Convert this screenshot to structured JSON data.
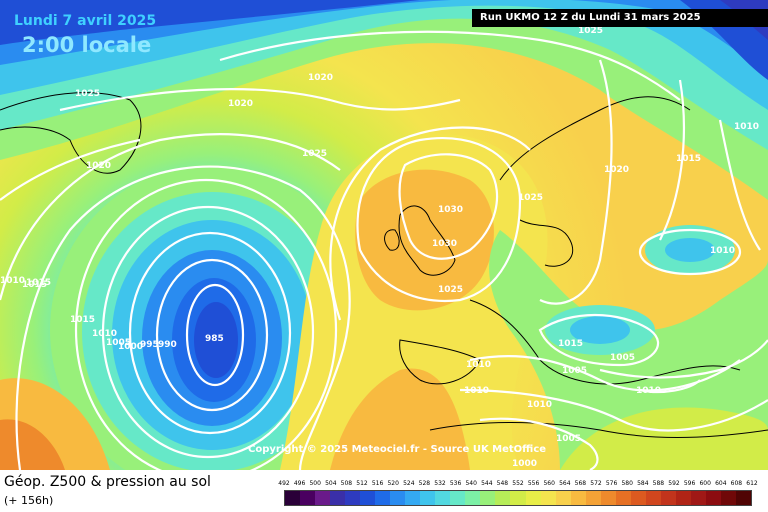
{
  "header": {
    "date": "Lundi 7 avril 2025",
    "time": "2:00 locale",
    "run": "Run UKMO 12 Z du Lundi 31 mars 2025"
  },
  "map": {
    "copyright": "Copyright © 2025 Meteociel.fr - Source UK MetOffice",
    "isobar_labels": [
      "1025",
      "1020",
      "1020",
      "1025",
      "1020",
      "1025",
      "1030",
      "1030",
      "1025",
      "1020",
      "1015",
      "1010",
      "1010",
      "1015",
      "1015",
      "1010",
      "1005",
      "1000",
      "995",
      "990",
      "985",
      "1020",
      "1010",
      "1010",
      "1015",
      "1005",
      "1005",
      "1010",
      "1010",
      "1005",
      "1000",
      "1025",
      "1010",
      "1015",
      "1020"
    ]
  },
  "footer": {
    "title": "Géop. Z500 & pression au sol",
    "subtitle": "(+ 156h)"
  },
  "scale": {
    "labels": [
      "492",
      "496",
      "500",
      "504",
      "508",
      "512",
      "516",
      "520",
      "524",
      "528",
      "532",
      "536",
      "540",
      "544",
      "548",
      "552",
      "556",
      "560",
      "564",
      "568",
      "572",
      "576",
      "580",
      "584",
      "588",
      "592",
      "596",
      "600",
      "604",
      "608",
      "612"
    ],
    "colors": [
      "#2a0038",
      "#4a0060",
      "#6a1a8a",
      "#3a2fa8",
      "#2e3bc0",
      "#1f4fd6",
      "#1f6be8",
      "#2a8cf0",
      "#34a9f2",
      "#3fc4ec",
      "#52d8e0",
      "#66e8c8",
      "#7cf0a6",
      "#98f07a",
      "#b6ec58",
      "#d2ec48",
      "#e8ee48",
      "#f4e44e",
      "#f8d04c",
      "#f8ba40",
      "#f4a236",
      "#ee8a2c",
      "#e67024",
      "#dc5a20",
      "#d0461e",
      "#c2341c",
      "#b02416",
      "#a01816",
      "#8c0c10",
      "#700808",
      "#500404"
    ]
  }
}
